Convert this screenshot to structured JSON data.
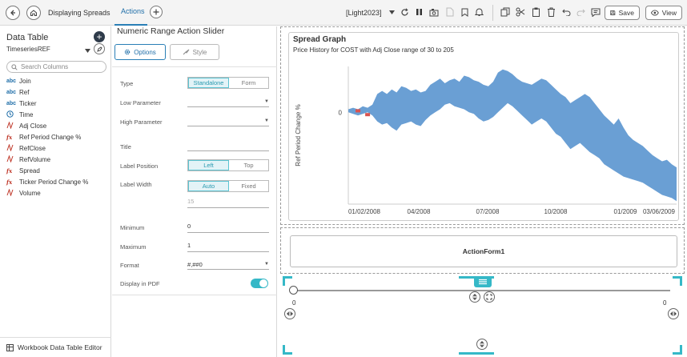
{
  "topbar": {
    "tabs": [
      "Displaying Spreads",
      "Actions"
    ],
    "active_tab": "Actions",
    "theme": "[Light2023]",
    "save_label": "Save",
    "view_label": "View"
  },
  "left_panel": {
    "title": "Data Table",
    "datasource": "TimeseriesREF",
    "search_placeholder": "Search Columns",
    "columns": [
      {
        "type": "abc",
        "name": "Join"
      },
      {
        "type": "abc",
        "name": "Ref"
      },
      {
        "type": "abc",
        "name": "Ticker"
      },
      {
        "type": "time",
        "name": "Time"
      },
      {
        "type": "num",
        "name": "Adj Close"
      },
      {
        "type": "fx",
        "name": "Ref Period Change %"
      },
      {
        "type": "num",
        "name": "RefClose"
      },
      {
        "type": "num",
        "name": "RefVolume"
      },
      {
        "type": "fx",
        "name": "Spread"
      },
      {
        "type": "fx",
        "name": "Ticker Period Change %"
      },
      {
        "type": "num",
        "name": "Volume"
      }
    ],
    "footer": "Workbook Data Table Editor"
  },
  "mid_panel": {
    "title": "Numeric Range Action Slider",
    "tab_options": "Options",
    "tab_style": "Style",
    "props": {
      "type_label": "Type",
      "type_options": [
        "Standalone",
        "Form"
      ],
      "low_param_label": "Low Parameter",
      "high_param_label": "High Parameter",
      "title_label": "Title",
      "label_position_label": "Label Position",
      "label_position_options": [
        "Left",
        "Top"
      ],
      "label_width_label": "Label Width",
      "label_width_options": [
        "Auto",
        "Fixed"
      ],
      "label_width_value": "15",
      "minimum_label": "Minimum",
      "minimum_value": "0",
      "maximum_label": "Maximum",
      "maximum_value": "1",
      "format_label": "Format",
      "format_value": "#,##0",
      "display_pdf_label": "Display in PDF"
    }
  },
  "canvas": {
    "form_label": "ActionForm1",
    "slider_min_label": "0",
    "slider_max_label": "0"
  },
  "chart_data": {
    "type": "area",
    "title": "Spread Graph",
    "subtitle": "Price History for COST with Adj Close range of 30 to 205",
    "ylabel": "Ref Period Change %",
    "y_ticks": [
      "0"
    ],
    "x_ticks": [
      "01/02/2008",
      "04/2008",
      "07/2008",
      "10/2008",
      "01/2009",
      "03/06/2009"
    ],
    "fill_color": "#6a9fd4",
    "negative_color": "#d9534f",
    "series": [
      {
        "values_upper": [
          0.02,
          0.03,
          0.02,
          0.04,
          0.03,
          0.05,
          0.12,
          0.14,
          0.12,
          0.15,
          0.13,
          0.17,
          0.16,
          0.14,
          0.15,
          0.13,
          0.14,
          0.18,
          0.2,
          0.22,
          0.19,
          0.21,
          0.22,
          0.2,
          0.24,
          0.23,
          0.21,
          0.2,
          0.18,
          0.17,
          0.2,
          0.26,
          0.28,
          0.27,
          0.25,
          0.22,
          0.2,
          0.19,
          0.18,
          0.2,
          0.22,
          0.21,
          0.18,
          0.15,
          0.12,
          0.1,
          0.06,
          0.08,
          0.1,
          0.12,
          0.1,
          0.06,
          0.02,
          -0.02,
          -0.05,
          -0.08,
          -0.04,
          -0.1,
          -0.15,
          -0.18,
          -0.2,
          -0.22,
          -0.25,
          -0.28,
          -0.3,
          -0.32,
          -0.31,
          -0.34,
          -0.36
        ],
        "values_lower": [
          0.0,
          -0.01,
          -0.02,
          -0.01,
          0.0,
          -0.02,
          -0.06,
          -0.08,
          -0.07,
          -0.1,
          -0.12,
          -0.08,
          -0.07,
          -0.06,
          -0.08,
          -0.09,
          -0.05,
          -0.02,
          0.0,
          0.02,
          0.05,
          0.06,
          0.04,
          0.03,
          0.02,
          0.0,
          -0.01,
          -0.04,
          -0.06,
          -0.05,
          -0.03,
          0.0,
          0.03,
          0.06,
          0.04,
          0.01,
          -0.02,
          -0.05,
          -0.08,
          -0.06,
          -0.04,
          -0.06,
          -0.1,
          -0.14,
          -0.16,
          -0.2,
          -0.24,
          -0.22,
          -0.2,
          -0.23,
          -0.26,
          -0.28,
          -0.3,
          -0.34,
          -0.36,
          -0.38,
          -0.4,
          -0.42,
          -0.43,
          -0.44,
          -0.45,
          -0.46,
          -0.48,
          -0.5,
          -0.52,
          -0.54,
          -0.55,
          -0.56,
          -0.58
        ]
      }
    ],
    "ylim": [
      -0.6,
      0.3
    ]
  }
}
